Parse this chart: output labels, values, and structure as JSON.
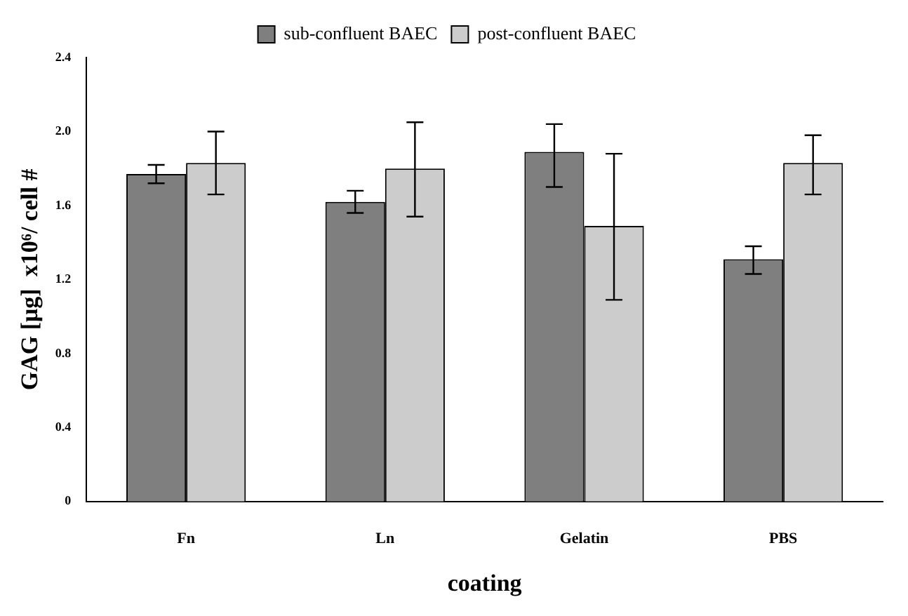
{
  "chart_data": {
    "type": "bar",
    "xlabel": "coating",
    "ylabel": "GAG [μg]  x10⁶/ cell #",
    "categories": [
      "Fn",
      "Ln",
      "Gelatin",
      "PBS"
    ],
    "series": [
      {
        "name": "sub-confluent BAEC",
        "color": "#7f7f7f",
        "values": [
          1.77,
          1.62,
          1.89,
          1.31
        ],
        "errors": [
          [
            1.72,
            1.82
          ],
          [
            1.56,
            1.68
          ],
          [
            1.7,
            2.04
          ],
          [
            1.23,
            1.38
          ]
        ]
      },
      {
        "name": "post-confluent BAEC",
        "color": "#cccccc",
        "values": [
          1.83,
          1.8,
          1.49,
          1.83
        ],
        "errors": [
          [
            1.66,
            2.0
          ],
          [
            1.54,
            2.05
          ],
          [
            1.09,
            1.88
          ],
          [
            1.66,
            1.98
          ]
        ]
      }
    ],
    "ylim": [
      0,
      2.4
    ],
    "yticks": [
      0,
      0.4,
      0.8,
      1.2,
      1.6,
      {
        "value": 2,
        "label": "2.0"
      },
      2.4
    ],
    "grid": false,
    "legend": "top"
  }
}
